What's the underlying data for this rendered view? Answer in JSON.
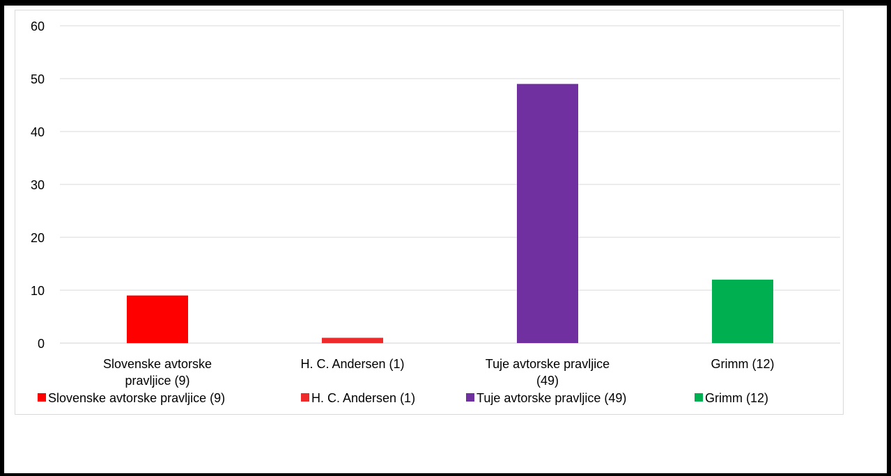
{
  "chart_data": {
    "type": "bar",
    "categories": [
      [
        "Slovenske avtorske",
        "pravljice (9)"
      ],
      [
        "H. C. Andersen (1)"
      ],
      [
        "Tuje avtorske pravljice",
        "(49)"
      ],
      [
        "Grimm (12)"
      ]
    ],
    "values": [
      9,
      1,
      49,
      12
    ],
    "colors": [
      "#ff0000",
      "#ee2a2a",
      "#7030a0",
      "#00b050"
    ],
    "ylim": [
      0,
      60
    ],
    "yticks": [
      "0",
      "10",
      "20",
      "30",
      "40",
      "50",
      "60"
    ],
    "grid": true,
    "legend_position": "bottom",
    "legend": [
      "Slovenske avtorske pravljice (9)",
      "H. C. Andersen (1)",
      "Tuje avtorske pravljice (49)",
      "Grimm (12)"
    ]
  }
}
